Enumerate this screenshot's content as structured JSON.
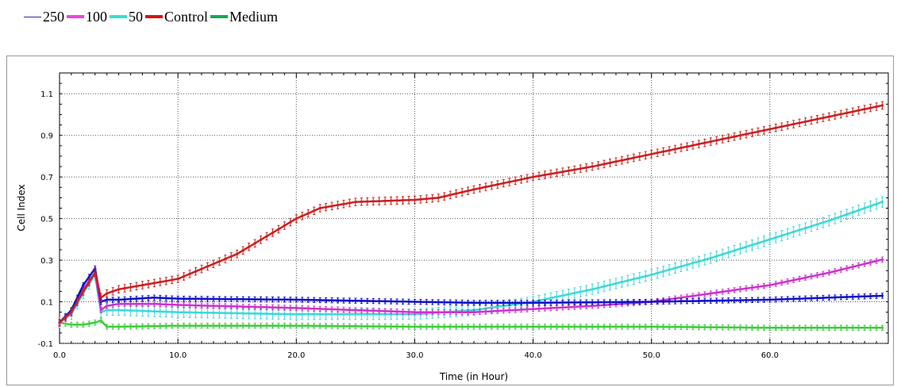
{
  "chart_data": {
    "type": "line",
    "xlabel": "Time (in Hour)",
    "ylabel": "Cell Index",
    "xlim": [
      0,
      70
    ],
    "ylim": [
      -0.1,
      1.2
    ],
    "x_ticks": [
      "0.0",
      "10.0",
      "20.0",
      "30.0",
      "40.0",
      "50.0",
      "60.0"
    ],
    "y_ticks": [
      "-0.1",
      "0.1",
      "0.3",
      "0.5",
      "0.7",
      "0.9",
      "1.1"
    ],
    "grid": true,
    "legend_position": "top-left, above plot",
    "series": [
      {
        "name": "250",
        "color": "#1010c8",
        "legend_color": "#2a2aa0",
        "error_bar": 0.012,
        "x": [
          0,
          1,
          2,
          3,
          3.5,
          4,
          5,
          8,
          10,
          20,
          30,
          35,
          40,
          50,
          60,
          65,
          70
        ],
        "y": [
          0,
          0.06,
          0.18,
          0.26,
          0.1,
          0.11,
          0.11,
          0.12,
          0.115,
          0.11,
          0.1,
          0.095,
          0.095,
          0.1,
          0.11,
          0.12,
          0.13
        ]
      },
      {
        "name": "100",
        "color": "#cc33cc",
        "legend_color": "#ee44dd",
        "error_bar": 0.012,
        "x": [
          0,
          1,
          2,
          3,
          3.5,
          4,
          5,
          8,
          10,
          20,
          30,
          35,
          40,
          45,
          50,
          55,
          60,
          65,
          70
        ],
        "y": [
          0,
          0.05,
          0.16,
          0.24,
          0.06,
          0.08,
          0.09,
          0.09,
          0.085,
          0.07,
          0.05,
          0.05,
          0.065,
          0.08,
          0.1,
          0.14,
          0.18,
          0.24,
          0.31
        ]
      },
      {
        "name": "50",
        "color": "#3fd8d8",
        "legend_color": "#33e0d0",
        "error_bar": 0.025,
        "x": [
          0,
          1,
          2,
          3,
          3.5,
          4,
          5,
          10,
          20,
          30,
          35,
          40,
          45,
          50,
          55,
          60,
          65,
          70
        ],
        "y": [
          0,
          0.04,
          0.14,
          0.23,
          0.05,
          0.06,
          0.06,
          0.05,
          0.04,
          0.04,
          0.06,
          0.1,
          0.16,
          0.23,
          0.31,
          0.4,
          0.49,
          0.59
        ]
      },
      {
        "name": "Control",
        "color": "#cc2020",
        "legend_color": "#dd1111",
        "error_bar": 0.018,
        "x": [
          0,
          1,
          2,
          3,
          3.5,
          4,
          5,
          10,
          15,
          20,
          22,
          25,
          30,
          32,
          35,
          40,
          45,
          50,
          55,
          60,
          65,
          70
        ],
        "y": [
          0,
          0.05,
          0.15,
          0.24,
          0.12,
          0.14,
          0.16,
          0.21,
          0.33,
          0.5,
          0.55,
          0.58,
          0.59,
          0.6,
          0.64,
          0.7,
          0.75,
          0.81,
          0.87,
          0.93,
          0.99,
          1.05
        ]
      },
      {
        "name": "Medium",
        "color": "#3ecc3e",
        "legend_color": "#11aa55",
        "error_bar": 0.012,
        "x": [
          0,
          1,
          2,
          3,
          3.5,
          4,
          5,
          10,
          20,
          30,
          40,
          50,
          60,
          70
        ],
        "y": [
          0,
          -0.01,
          -0.01,
          0.0,
          0.01,
          -0.02,
          -0.02,
          -0.015,
          -0.015,
          -0.02,
          -0.02,
          -0.02,
          -0.025,
          -0.025
        ]
      }
    ]
  }
}
